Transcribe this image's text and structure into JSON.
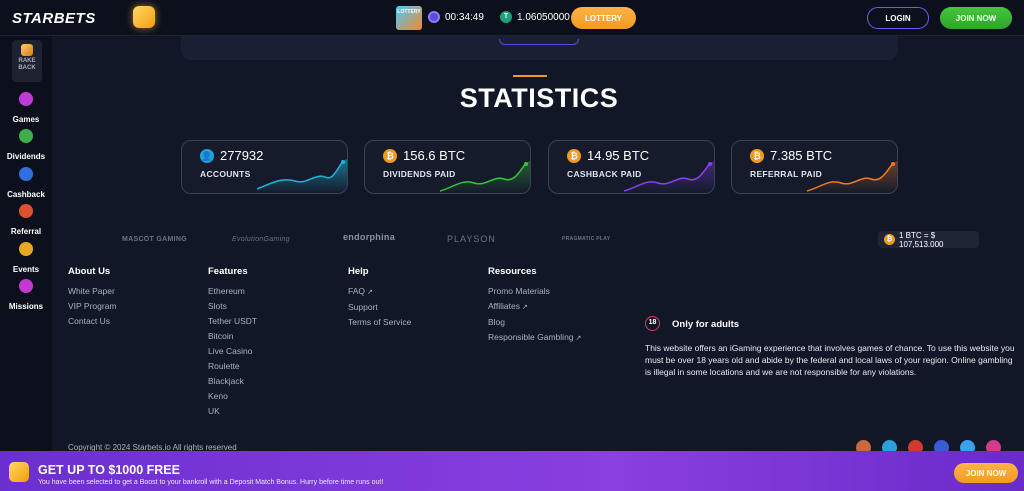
{
  "header": {
    "logo": "STARBETS",
    "ticket_label": "LOTTERY",
    "timer": "00:34:49",
    "balance_icon": "T",
    "balance": "1.06050000",
    "lottery_button": "LOTTERY",
    "login_button": "LOGIN",
    "join_button": "JOIN NOW"
  },
  "sidebar": {
    "rakeback": "RAKE BACK",
    "items": [
      {
        "label": "Games",
        "icon": "games-icon",
        "color": "#c03ad8"
      },
      {
        "label": "Dividends",
        "icon": "dividends-icon",
        "color": "#3fae4a"
      },
      {
        "label": "Cashback",
        "icon": "cashback-icon",
        "color": "#2f6fe0"
      },
      {
        "label": "Referral",
        "icon": "referral-icon",
        "color": "#e0502e"
      },
      {
        "label": "Events",
        "icon": "events-icon",
        "color": "#e8a821"
      },
      {
        "label": "Missions",
        "icon": "missions-icon",
        "color": "#c43ad0"
      }
    ]
  },
  "statistics": {
    "title": "STATISTICS",
    "cards": [
      {
        "value": "277932",
        "label": "ACCOUNTS",
        "color": "#1fb5d8"
      },
      {
        "value": "156.6 BTC",
        "label": "DIVIDENDS PAID",
        "color": "#37c43c"
      },
      {
        "value": "14.95 BTC",
        "label": "CASHBACK PAID",
        "color": "#8b3ff0"
      },
      {
        "value": "7.385 BTC",
        "label": "REFERRAL PAID",
        "color": "#f27a1e"
      }
    ]
  },
  "providers": [
    "MASCOT GAMING",
    "EvolutionGaming",
    "endorphina",
    "PLAYSON",
    "PRAGMATIC PLAY"
  ],
  "btc_rate": "1 BTC = $ 107,513.000",
  "footer": {
    "about": {
      "title": "About Us",
      "links": [
        "White Paper",
        "VIP Program",
        "Contact Us"
      ]
    },
    "features": {
      "title": "Features",
      "links": [
        "Ethereum",
        "Slots",
        "Tether USDT",
        "Bitcoin",
        "Live Casino",
        "Roulette",
        "Blackjack",
        "Keno",
        "UK"
      ]
    },
    "help": {
      "title": "Help",
      "links": [
        "FAQ",
        "Support",
        "Terms of Service"
      ]
    },
    "resources": {
      "title": "Resources",
      "links": [
        "Promo Materials",
        "Affiliates",
        "Blog",
        "Responsible Gambling"
      ]
    },
    "adult_badge": "18",
    "adult_title": "Only for adults",
    "adult_text": "This website offers an iGaming experience that involves games of chance. To use this website you must be over 18 years old and abide by the federal and local laws of your region. Online gambling is illegal in some locations and we are not responsible for any violations.",
    "copyright": "Copyright © 2024 Starbets.io All rights reserved"
  },
  "socials": [
    {
      "icon": "bitcointalk-icon",
      "color": "#c86a3a"
    },
    {
      "icon": "telegram-icon",
      "color": "#2a9fd8"
    },
    {
      "icon": "youtube-icon",
      "color": "#d33a2f"
    },
    {
      "icon": "facebook-icon",
      "color": "#3b5bd6"
    },
    {
      "icon": "twitter-icon",
      "color": "#3aa2e8"
    },
    {
      "icon": "instagram-icon",
      "color": "#d23a8a"
    }
  ],
  "promo": {
    "title": "GET UP TO $1000 FREE",
    "subtitle": "You have been selected to get a Boost to your bankroll with a Deposit Match Bonus. Hurry before time runs out!",
    "button": "JOIN NOW"
  }
}
